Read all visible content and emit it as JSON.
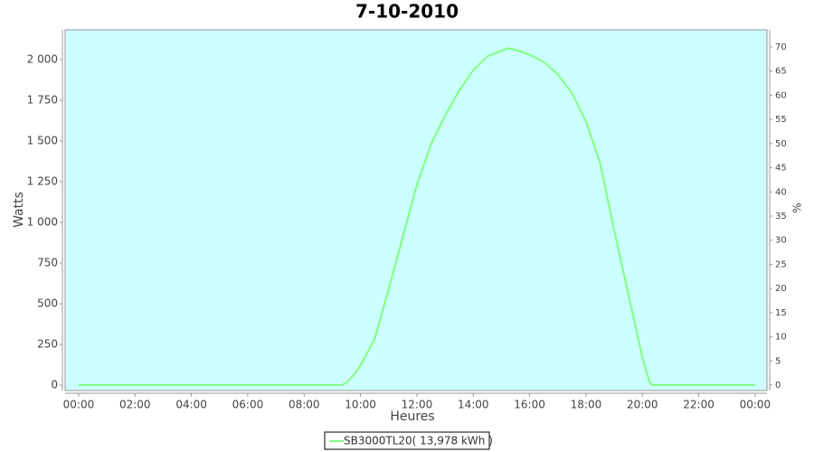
{
  "chart_data": {
    "type": "line",
    "title": "7-10-2010",
    "x_label": "Heures",
    "y_label": "Watts",
    "y2_label": "%",
    "x": [
      0,
      9.33,
      9.5,
      9.75,
      10,
      10.5,
      11,
      11.5,
      12,
      12.5,
      13,
      13.5,
      14,
      14.5,
      15,
      15.25,
      15.5,
      16,
      16.5,
      17,
      17.5,
      18,
      18.5,
      19,
      19.5,
      20,
      20.25,
      20.35,
      24
    ],
    "series": [
      {
        "name": "SB3000TL20( 13,978 kWh )",
        "color": "#80ff80",
        "values": [
          0,
          0,
          15,
          60,
          122,
          283,
          590,
          910,
          1230,
          1480,
          1655,
          1810,
          1935,
          2020,
          2055,
          2070,
          2060,
          2030,
          1985,
          1910,
          1795,
          1620,
          1365,
          950,
          560,
          170,
          20,
          0,
          0
        ]
      }
    ],
    "xlim": [
      -0.48,
      24.42
    ],
    "xticks": [
      {
        "value": 0,
        "label": "00:00"
      },
      {
        "value": 2,
        "label": "02:00"
      },
      {
        "value": 4,
        "label": "04:00"
      },
      {
        "value": 6,
        "label": "06:00"
      },
      {
        "value": 8,
        "label": "08:00"
      },
      {
        "value": 10,
        "label": "10:00"
      },
      {
        "value": 12,
        "label": "12:00"
      },
      {
        "value": 14,
        "label": "14:00"
      },
      {
        "value": 16,
        "label": "16:00"
      },
      {
        "value": 18,
        "label": "18:00"
      },
      {
        "value": 20,
        "label": "20:00"
      },
      {
        "value": 22,
        "label": "22:00"
      },
      {
        "value": 24,
        "label": "00:00"
      }
    ],
    "ylim": [
      -33,
      2183
    ],
    "yticks": [
      0,
      250,
      500,
      750,
      {
        "value": 1000,
        "label": "1 000"
      },
      {
        "value": 1250,
        "label": "1 250"
      },
      {
        "value": 1500,
        "label": "1 500"
      },
      {
        "value": 1750,
        "label": "1 750"
      },
      {
        "value": 2000,
        "label": "2 000"
      }
    ],
    "y2lim": [
      -1.12,
      73.55
    ],
    "y2ticks": [
      0,
      5,
      10,
      15,
      20,
      25,
      30,
      35,
      40,
      45,
      50,
      55,
      60,
      65,
      70
    ],
    "plot_background": "#ccffff",
    "legend": "bottom"
  }
}
